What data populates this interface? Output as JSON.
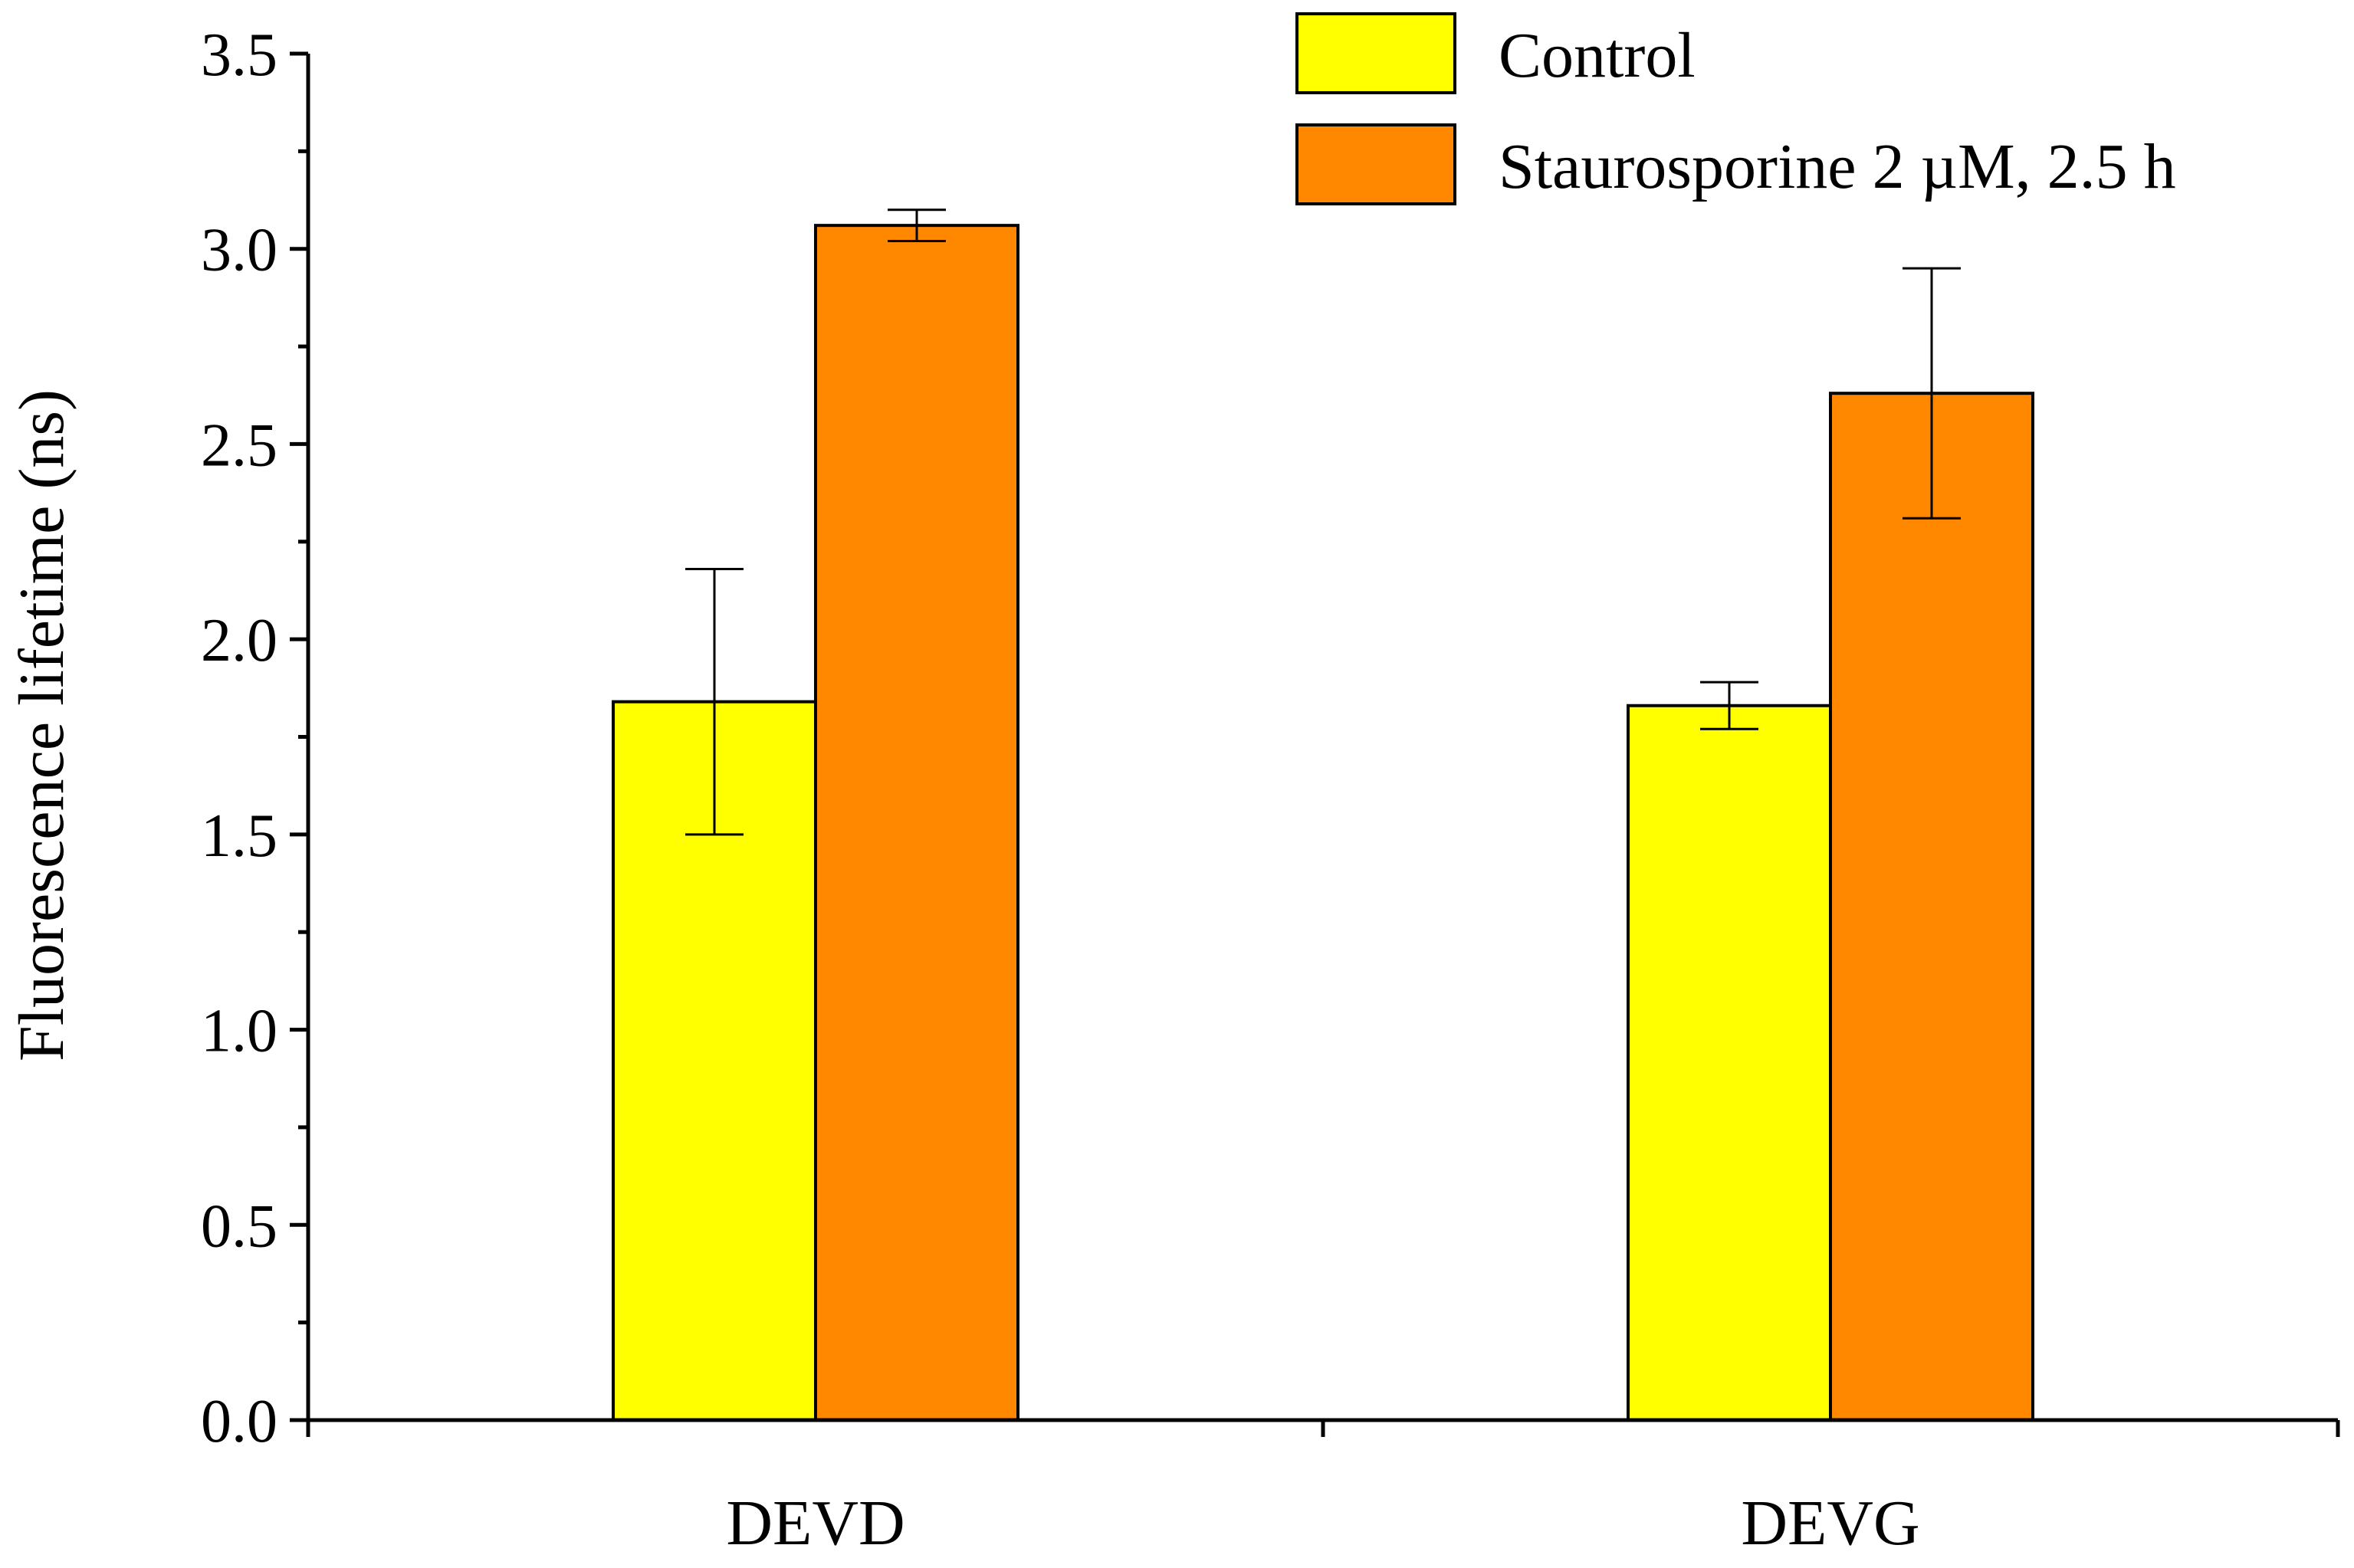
{
  "chart_data": {
    "type": "bar",
    "title": "",
    "xlabel": "",
    "ylabel": "Fluorescence lifetime (ns)",
    "ylim": [
      0,
      3.5
    ],
    "yticks": [
      "0.0",
      "0.5",
      "1.0",
      "1.5",
      "2.0",
      "2.5",
      "3.0",
      "3.5"
    ],
    "categories": [
      "DEVD",
      "DEVG"
    ],
    "series": [
      {
        "name": "Control",
        "color": "#ffff00",
        "values": [
          1.84,
          1.83
        ],
        "errors": [
          0.34,
          0.06
        ]
      },
      {
        "name": "Staurosporine 2 µM, 2.5 h",
        "color": "#ff8800",
        "values": [
          3.06,
          2.63
        ],
        "errors": [
          0.04,
          0.32
        ]
      }
    ],
    "legend_position": "top-right",
    "grid": false
  }
}
